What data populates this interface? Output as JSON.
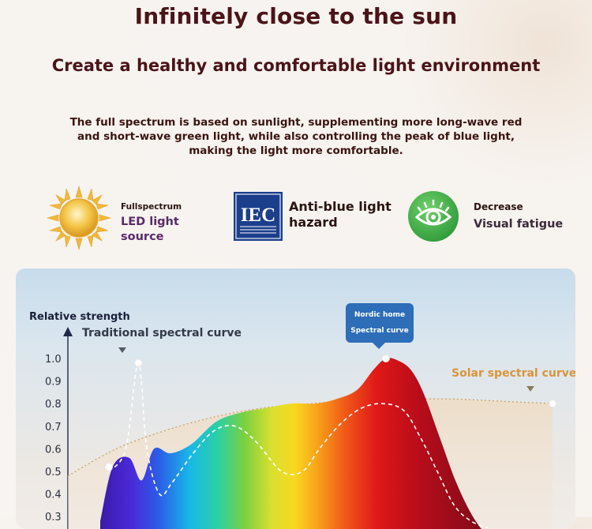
{
  "header": {
    "title": "Infinitely close to the sun",
    "subtitle": "Create a healthy and comfortable light environment",
    "description": "The full spectrum is based on sunlight, supplementing more long-wave red and short-wave green light, while also controlling the peak of blue light, making the light more comfortable."
  },
  "features": [
    {
      "icon": "sun-icon",
      "small": "Fullspectrum",
      "big": "LED light source"
    },
    {
      "icon": "iec-icon",
      "logo_text": "IEC",
      "big": "Anti-blue light hazard"
    },
    {
      "icon": "eye-icon",
      "small": "Decrease",
      "big": "Visual fatigue"
    }
  ],
  "colors": {
    "title": "#4a1418",
    "accent_orange": "#d8953a",
    "tooltip_blue": "#2e6db8",
    "axis_dark": "#1f2a4a"
  },
  "chart_data": {
    "type": "area",
    "ylabel": "Relative strength",
    "yticks": [
      "1.0",
      "0.9",
      "0.8",
      "0.7",
      "0.6",
      "0.5",
      "0.4",
      "0.3"
    ],
    "ylim": [
      0.3,
      1.0
    ],
    "grid": false,
    "annotations": {
      "traditional": "Traditional spectral curve",
      "solar": "Solar spectral curve",
      "nordic_line1": "Nordic home",
      "nordic_line2": "Spectral curve"
    },
    "series": [
      {
        "name": "Nordic home Spectral curve",
        "x": [
          0,
          0.03,
          0.07,
          0.1,
          0.13,
          0.17,
          0.22,
          0.28,
          0.34,
          0.4,
          0.46,
          0.52,
          0.57,
          0.62,
          0.66,
          0.69,
          0.72,
          0.75,
          0.78,
          0.82,
          0.86,
          0.9,
          0.94
        ],
        "values": [
          0.28,
          0.52,
          0.56,
          0.46,
          0.6,
          0.58,
          0.62,
          0.72,
          0.76,
          0.78,
          0.8,
          0.8,
          0.82,
          0.86,
          0.95,
          1.0,
          0.99,
          0.95,
          0.85,
          0.65,
          0.45,
          0.3,
          0.2
        ]
      },
      {
        "name": "Traditional spectral curve",
        "x": [
          0.0,
          0.04,
          0.07,
          0.09,
          0.12,
          0.15,
          0.2,
          0.25,
          0.3,
          0.35,
          0.41,
          0.46,
          0.5,
          0.55,
          0.6,
          0.65,
          0.7,
          0.74,
          0.78,
          0.82,
          0.86,
          0.9
        ],
        "values": [
          0.5,
          0.6,
          0.98,
          0.6,
          0.4,
          0.45,
          0.58,
          0.68,
          0.7,
          0.63,
          0.5,
          0.5,
          0.6,
          0.71,
          0.78,
          0.8,
          0.77,
          0.65,
          0.5,
          0.35,
          0.28,
          0.25
        ]
      },
      {
        "name": "Solar spectral curve",
        "x": [
          0,
          0.1,
          0.2,
          0.3,
          0.4,
          0.5,
          0.6,
          0.7,
          0.8,
          0.9,
          1.0
        ],
        "values": [
          0.48,
          0.6,
          0.68,
          0.74,
          0.78,
          0.8,
          0.815,
          0.82,
          0.82,
          0.81,
          0.8
        ]
      }
    ]
  }
}
